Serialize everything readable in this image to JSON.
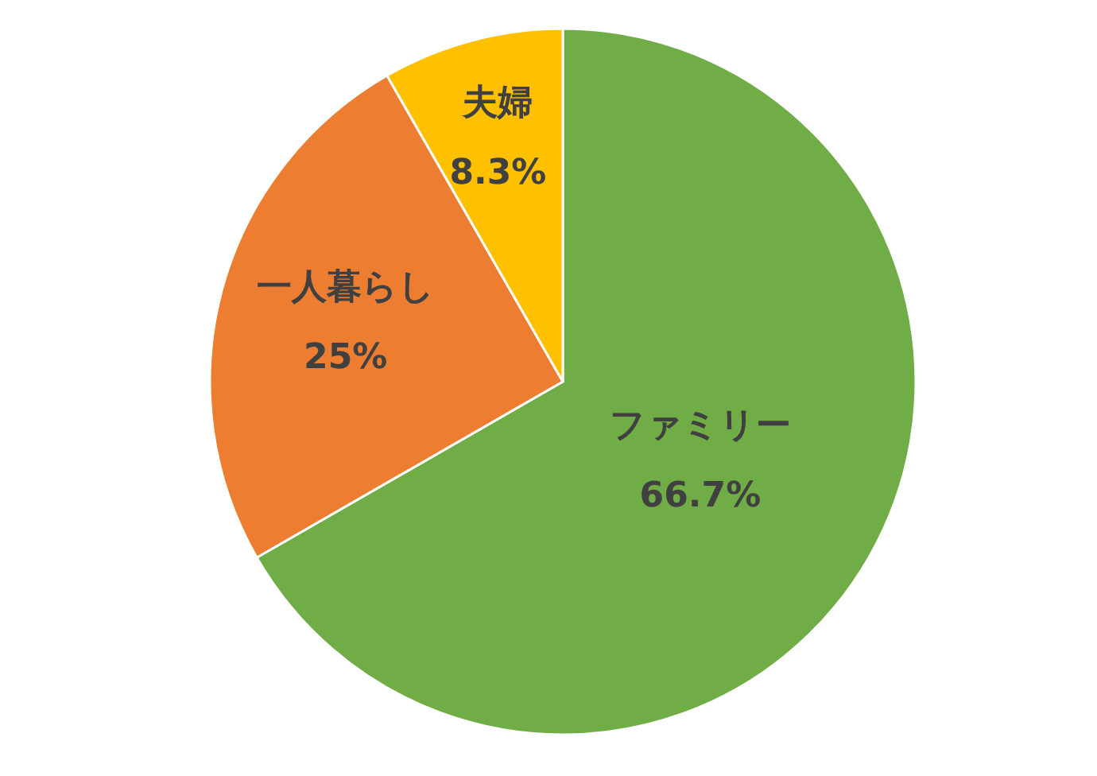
{
  "chart_data": {
    "type": "pie",
    "categories": [
      "ファミリー",
      "一人暮らし",
      "夫婦"
    ],
    "values": [
      66.7,
      25,
      8.3
    ],
    "value_labels": [
      "66.7%",
      "25%",
      "8.3%"
    ],
    "colors": [
      "#70ad47",
      "#ed7d31",
      "#ffc000"
    ],
    "legend": false
  }
}
